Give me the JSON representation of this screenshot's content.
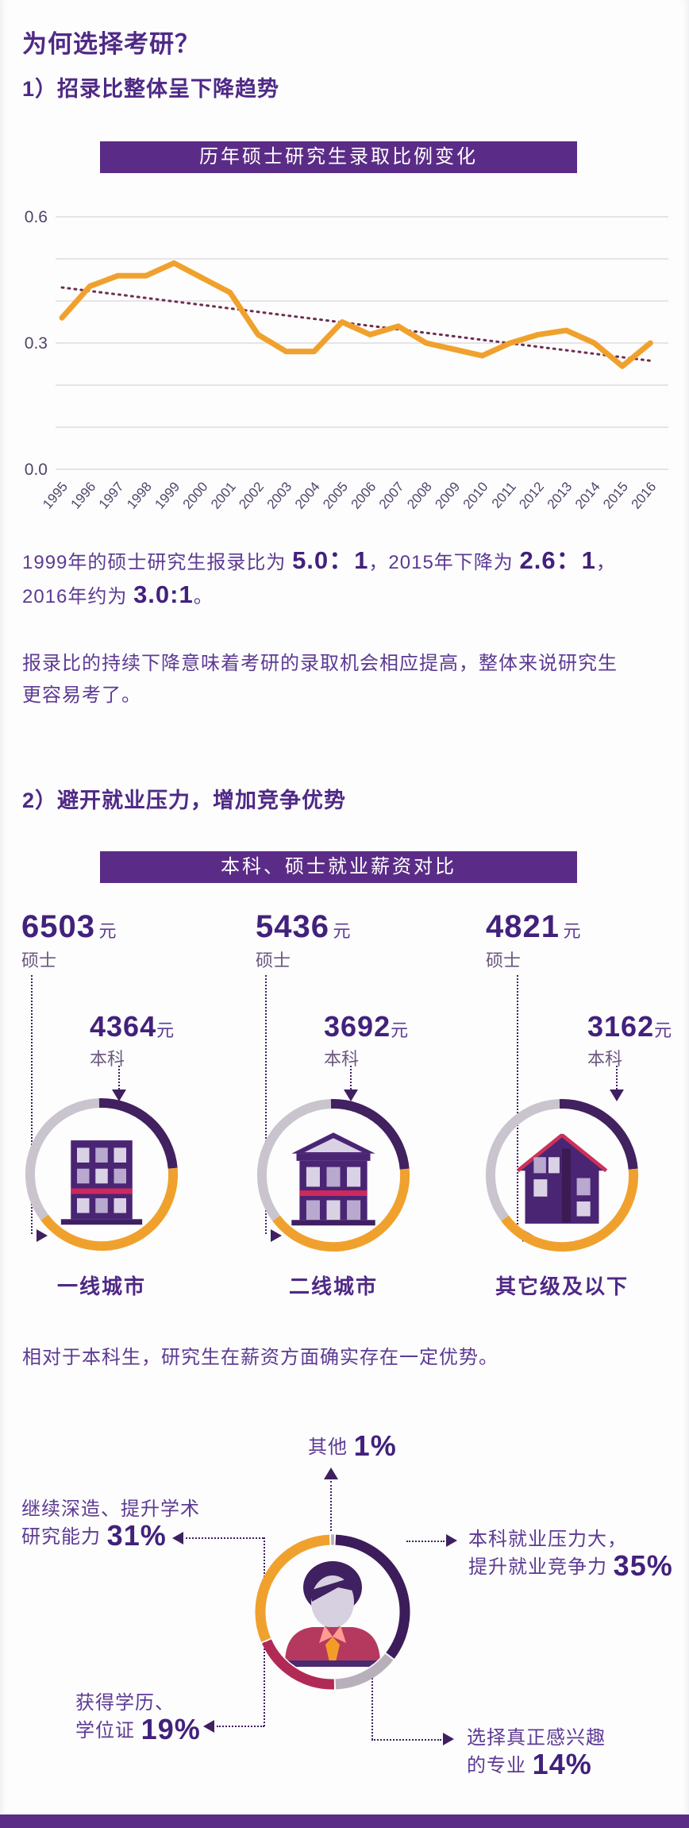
{
  "page": {
    "title": "为何选择考研？"
  },
  "section1": {
    "heading": "1）招录比整体呈下降趋势",
    "banner": "历年硕士研究生录取比例变化",
    "p1_line1": {
      "s1": "1999年的硕士研究生报录比为 ",
      "b1": "5.0：1",
      "s2": "，2015年下降为 ",
      "b2": "2.6：1",
      "s3": "，"
    },
    "p1_line2": {
      "s1": "2016年约为 ",
      "b1": "3.0:1",
      "s2": "。"
    },
    "p2_line1": "报录比的持续下降意味着考研的录取机会相应提高，整体来说研究生",
    "p2_line2": "更容易考了。"
  },
  "section2": {
    "heading": "2）避开就业压力，增加竞争优势",
    "banner": "本科、硕士就业薪资对比",
    "p": "相对于本科生，研究生在薪资方面确实存在一定优势。"
  },
  "salary": {
    "columns": [
      {
        "masters_value": "6503",
        "masters_unit": "元",
        "masters_label": "硕士",
        "bachelor_value": "4364",
        "bachelor_unit": "元",
        "bachelor_label": "本科",
        "city": "一线城市"
      },
      {
        "masters_value": "5436",
        "masters_unit": "元",
        "masters_label": "硕士",
        "bachelor_value": "3692",
        "bachelor_unit": "元",
        "bachelor_label": "本科",
        "city": "二线城市"
      },
      {
        "masters_value": "4821",
        "masters_unit": "元",
        "masters_label": "硕士",
        "bachelor_value": "3162",
        "bachelor_unit": "元",
        "bachelor_label": "本科",
        "city": "其它级及以下"
      }
    ]
  },
  "reasons": {
    "top": {
      "label": "其他 ",
      "pct": "1%"
    },
    "left_line1": "继续深造、提升学术",
    "left_line2": {
      "label": "研究能力 ",
      "pct": "31%"
    },
    "right_line1": "本科就业压力大，",
    "right_line2": {
      "label": "提升就业竞争力 ",
      "pct": "35%"
    },
    "bl_line1": "获得学历、",
    "bl_line2": {
      "label": "学位证 ",
      "pct": "19%"
    },
    "br_line1": "选择真正感兴趣",
    "br_line2": {
      "label": "的专业 ",
      "pct": "14%"
    }
  },
  "colors": {
    "accent_purple": "#5b2c87",
    "dark_purple": "#42217c",
    "line_orange": "#f0a12d",
    "trend_maroon": "#6e2d4f",
    "grid": "#dfdce1",
    "axis_text": "#51446a",
    "ring_purple": "#41215f",
    "ring_orange": "#f0a12d",
    "ring_gray": "#c9c4cd",
    "donut_purple": "#3c1c5a",
    "donut_gray": "#b7b0ba",
    "donut_crimson": "#b12a55",
    "donut_orange": "#f0a12d"
  },
  "chart_data": [
    {
      "type": "line",
      "title": "历年硕士研究生录取比例变化",
      "x": [
        1995,
        1996,
        1997,
        1998,
        1999,
        2000,
        2001,
        2002,
        2003,
        2004,
        2005,
        2006,
        2007,
        2008,
        2009,
        2010,
        2011,
        2012,
        2013,
        2014,
        2015,
        2016
      ],
      "series": [
        {
          "name": "录取比例",
          "values": [
            0.36,
            0.435,
            0.46,
            0.46,
            0.49,
            0.455,
            0.42,
            0.32,
            0.28,
            0.28,
            0.35,
            0.32,
            0.34,
            0.3,
            0.285,
            0.27,
            0.3,
            0.32,
            0.33,
            0.3,
            0.245,
            0.3
          ]
        },
        {
          "name": "趋势线",
          "style": "dotted",
          "endpoints": [
            0.432,
            0.258
          ]
        }
      ],
      "ylim": [
        0.0,
        0.6
      ],
      "ytick_labels": [
        "0.6",
        "0.3",
        "0.0"
      ],
      "grid_step": 0.1,
      "grid": true,
      "legend": false
    },
    {
      "type": "table",
      "title": "本科、硕士就业薪资对比",
      "categories": [
        "一线城市",
        "二线城市",
        "其它级及以下"
      ],
      "series": [
        {
          "name": "硕士",
          "values": [
            6503,
            5436,
            4821
          ]
        },
        {
          "name": "本科",
          "values": [
            4364,
            3692,
            3162
          ]
        }
      ],
      "unit": "元"
    },
    {
      "type": "pie",
      "title": "选择考研的原因",
      "labels": [
        "其他",
        "本科就业压力大，提升就业竞争力",
        "选择真正感兴趣的专业",
        "获得学历、学位证",
        "继续深造、提升学术研究能力"
      ],
      "values": [
        1,
        35,
        14,
        19,
        31
      ],
      "slice_colors": [
        "#b7b0ba",
        "#3c1c5a",
        "#b7b0ba",
        "#b12a55",
        "#f0a12d"
      ],
      "start_angle_deg": -1.8
    }
  ]
}
